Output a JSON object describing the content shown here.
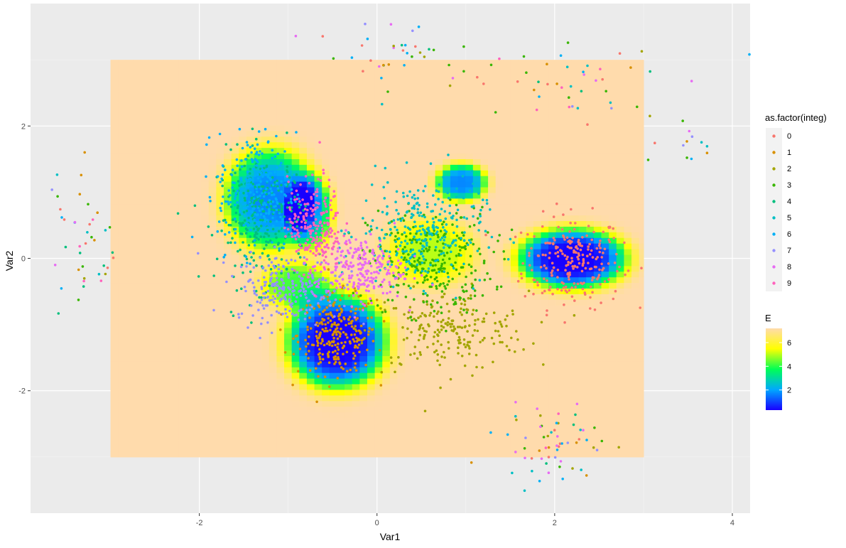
{
  "chart_data": {
    "type": "scatter",
    "title": "",
    "xlabel": "Var1",
    "ylabel": "Var2",
    "xlim": [
      -3.9,
      4.2
    ],
    "ylim": [
      -3.85,
      3.85
    ],
    "x_ticks": [
      -2,
      0,
      2,
      4
    ],
    "y_ticks": [
      -2,
      0,
      2
    ],
    "x_tick_labels": [
      "-2",
      "0",
      "2",
      "4"
    ],
    "y_tick_labels": [
      "-2",
      "0",
      "2"
    ],
    "grid": true,
    "legend_placement": "right",
    "legend_title": "as.factor(integ)",
    "classes": [
      {
        "name": "0",
        "color": "#F8766D",
        "center": [
          2.2,
          -0.05
        ],
        "spread": [
          0.28,
          0.35
        ],
        "n": 230
      },
      {
        "name": "1",
        "color": "#D89000",
        "center": [
          -0.45,
          -1.15
        ],
        "spread": [
          0.22,
          0.3
        ],
        "n": 260
      },
      {
        "name": "2",
        "color": "#A3A500",
        "center": [
          0.8,
          -1.1
        ],
        "spread": [
          0.45,
          0.3
        ],
        "n": 210
      },
      {
        "name": "3",
        "color": "#39B600",
        "center": [
          0.6,
          -0.05
        ],
        "spread": [
          0.35,
          0.4
        ],
        "n": 280
      },
      {
        "name": "4",
        "color": "#00BF7D",
        "center": [
          -1.3,
          0.6
        ],
        "spread": [
          0.25,
          0.5
        ],
        "n": 280
      },
      {
        "name": "5",
        "color": "#00BFC4",
        "center": [
          0.5,
          0.4
        ],
        "spread": [
          0.35,
          0.4
        ],
        "n": 280
      },
      {
        "name": "6",
        "color": "#00B0F6",
        "center": [
          -1.35,
          1.0
        ],
        "spread": [
          0.22,
          0.45
        ],
        "n": 240
      },
      {
        "name": "7",
        "color": "#9590FF",
        "center": [
          -1.0,
          -0.45
        ],
        "spread": [
          0.3,
          0.25
        ],
        "n": 230
      },
      {
        "name": "8",
        "color": "#E76BF3",
        "center": [
          -0.2,
          -0.15
        ],
        "spread": [
          0.25,
          0.25
        ],
        "n": 230
      },
      {
        "name": "9",
        "color": "#FF62BC",
        "center": [
          -0.7,
          0.5
        ],
        "spread": [
          0.15,
          0.35
        ],
        "n": 220
      }
    ],
    "outlier_groups": [
      {
        "center": [
          -3.3,
          0.2
        ],
        "spread": [
          0.18,
          0.6
        ],
        "n": 40
      },
      {
        "center": [
          0.3,
          3.0
        ],
        "spread": [
          0.4,
          0.3
        ],
        "n": 40
      },
      {
        "center": [
          2.3,
          2.7
        ],
        "spread": [
          0.5,
          0.3
        ],
        "n": 40
      },
      {
        "center": [
          2.0,
          -2.8
        ],
        "spread": [
          0.3,
          0.3
        ],
        "n": 60
      },
      {
        "center": [
          3.5,
          1.8
        ],
        "spread": [
          0.3,
          0.2
        ],
        "n": 12
      }
    ],
    "energy_field": {
      "name": "E",
      "xrange": [
        -3.0,
        3.0
      ],
      "yrange": [
        -3.0,
        3.0
      ],
      "background_value": 7.2,
      "min_value": 0.3,
      "legend_ticks": [
        2,
        4,
        6
      ],
      "legend_tick_labels": [
        "2",
        "4",
        "6"
      ],
      "colorscale": [
        "#1800FF",
        "#00A8FF",
        "#00FF55",
        "#FFFF00",
        "#FFDBAC"
      ],
      "wells": [
        {
          "center": [
            -0.45,
            -1.25
          ],
          "radius": [
            0.55,
            0.7
          ],
          "depth": 7.0
        },
        {
          "center": [
            2.2,
            0.0
          ],
          "radius": [
            0.6,
            0.45
          ],
          "depth": 7.0
        },
        {
          "center": [
            -1.2,
            0.9
          ],
          "radius": [
            0.5,
            0.75
          ],
          "depth": 5.5
        },
        {
          "center": [
            -0.75,
            0.7
          ],
          "radius": [
            0.25,
            0.55
          ],
          "depth": 4.0
        },
        {
          "center": [
            0.95,
            1.15
          ],
          "radius": [
            0.28,
            0.28
          ],
          "depth": 5.5
        },
        {
          "center": [
            -0.9,
            -0.4
          ],
          "radius": [
            0.4,
            0.35
          ],
          "depth": 3.0
        },
        {
          "center": [
            0.6,
            0.1
          ],
          "radius": [
            0.5,
            0.5
          ],
          "depth": 2.2
        }
      ]
    }
  }
}
